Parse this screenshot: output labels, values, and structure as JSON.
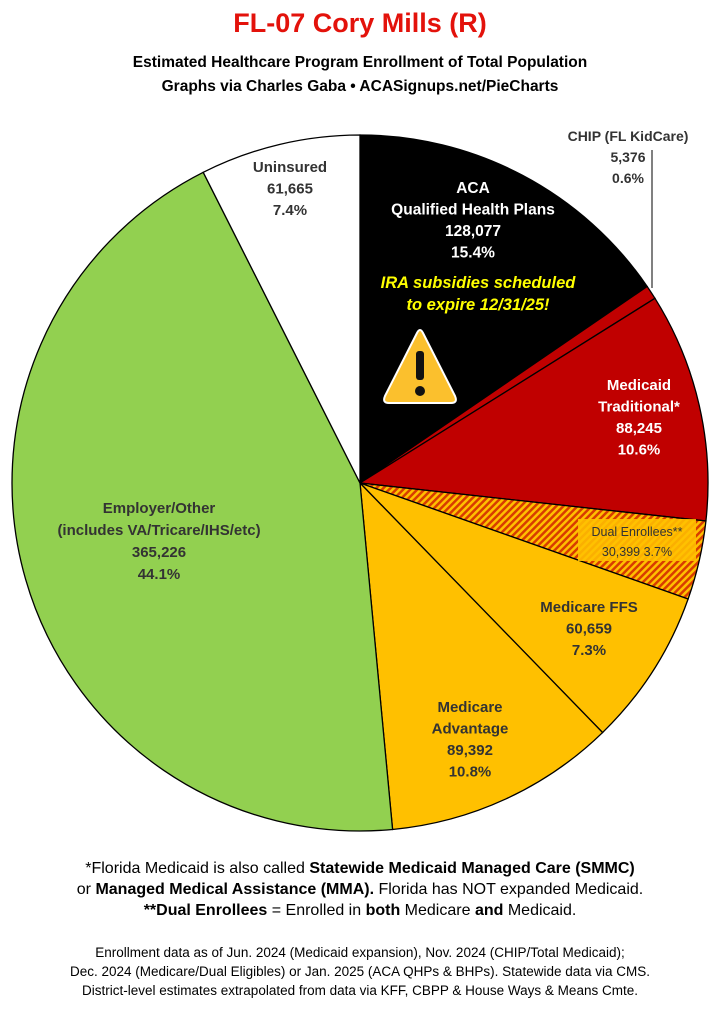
{
  "header": {
    "title": "FL-07 Cory Mills (R)",
    "subtitle_line1": "Estimated Healthcare Program Enrollment of Total Population",
    "subtitle_line2": "Graphs via Charles Gaba  •  ACASignups.net/PieCharts"
  },
  "chart_data": {
    "type": "pie",
    "start_angle_deg": 0,
    "direction": "clockwise",
    "slices": [
      {
        "key": "aca",
        "label_lines": [
          "ACA",
          "Qualified Health Plans"
        ],
        "value": 128077,
        "value_text": "128,077",
        "percent_text": "15.4%",
        "color": "#000000",
        "text_color": "#ffffff"
      },
      {
        "key": "chip",
        "label_lines": [
          "CHIP (FL KidCare)"
        ],
        "value": 5376,
        "value_text": "5,376",
        "percent_text": "0.6%",
        "color": "#c00000",
        "text_color": "#333333"
      },
      {
        "key": "medicaid",
        "label_lines": [
          "Medicaid",
          "Traditional*"
        ],
        "value": 88245,
        "value_text": "88,245",
        "percent_text": "10.6%",
        "color": "#c00000",
        "text_color": "#ffffff"
      },
      {
        "key": "dual",
        "label_lines": [
          "Dual Enrollees**"
        ],
        "value": 30399,
        "value_text": "30,399",
        "percent_text": "3.7%",
        "color": "#d83c00",
        "pattern": "hatch",
        "text_color": "#333333"
      },
      {
        "key": "medicare_ffs",
        "label_lines": [
          "Medicare FFS"
        ],
        "value": 60659,
        "value_text": "60,659",
        "percent_text": "7.3%",
        "color": "#ffc000",
        "text_color": "#333333"
      },
      {
        "key": "medicare_adv",
        "label_lines": [
          "Medicare",
          "Advantage"
        ],
        "value": 89392,
        "value_text": "89,392",
        "percent_text": "10.8%",
        "color": "#ffc000",
        "text_color": "#333333"
      },
      {
        "key": "employer",
        "label_lines": [
          "Employer/Other",
          "(includes VA/Tricare/IHS/etc)"
        ],
        "value": 365226,
        "value_text": "365,226",
        "percent_text": "44.1%",
        "color": "#92d050",
        "text_color": "#333333"
      },
      {
        "key": "uninsured",
        "label_lines": [
          "Uninsured"
        ],
        "value": 61665,
        "value_text": "61,665",
        "percent_text": "7.4%",
        "color": "#ffffff",
        "text_color": "#333333"
      }
    ],
    "callout": {
      "line1": "IRA subsidies scheduled",
      "line2": "to expire 12/31/25!",
      "color": "#ffff00",
      "icon": "warning-icon",
      "icon_color": "#fbc02d"
    }
  },
  "notes": {
    "line1_a": "*Florida Medicaid is also called ",
    "line1_b": "Statewide Medicaid Managed Care (SMMC)",
    "line2_a": "or ",
    "line2_b": "Managed Medical Assistance (MMA).",
    "line2_c": " Florida has NOT expanded Medicaid.",
    "line3_a": "**Dual Enrollees",
    "line3_b": " = Enrolled in ",
    "line3_c": "both",
    "line3_d": " Medicare ",
    "line3_e": "and",
    "line3_f": " Medicaid."
  },
  "sources": {
    "line1": "Enrollment data as of Jun. 2024 (Medicaid expansion), Nov. 2024 (CHIP/Total Medicaid);",
    "line2": "Dec. 2024 (Medicare/Dual Eligibles) or Jan. 2025 (ACA QHPs & BHPs). Statewide data via CMS.",
    "line3": "District-level estimates extrapolated from data via KFF, CBPP & House Ways & Means Cmte."
  }
}
